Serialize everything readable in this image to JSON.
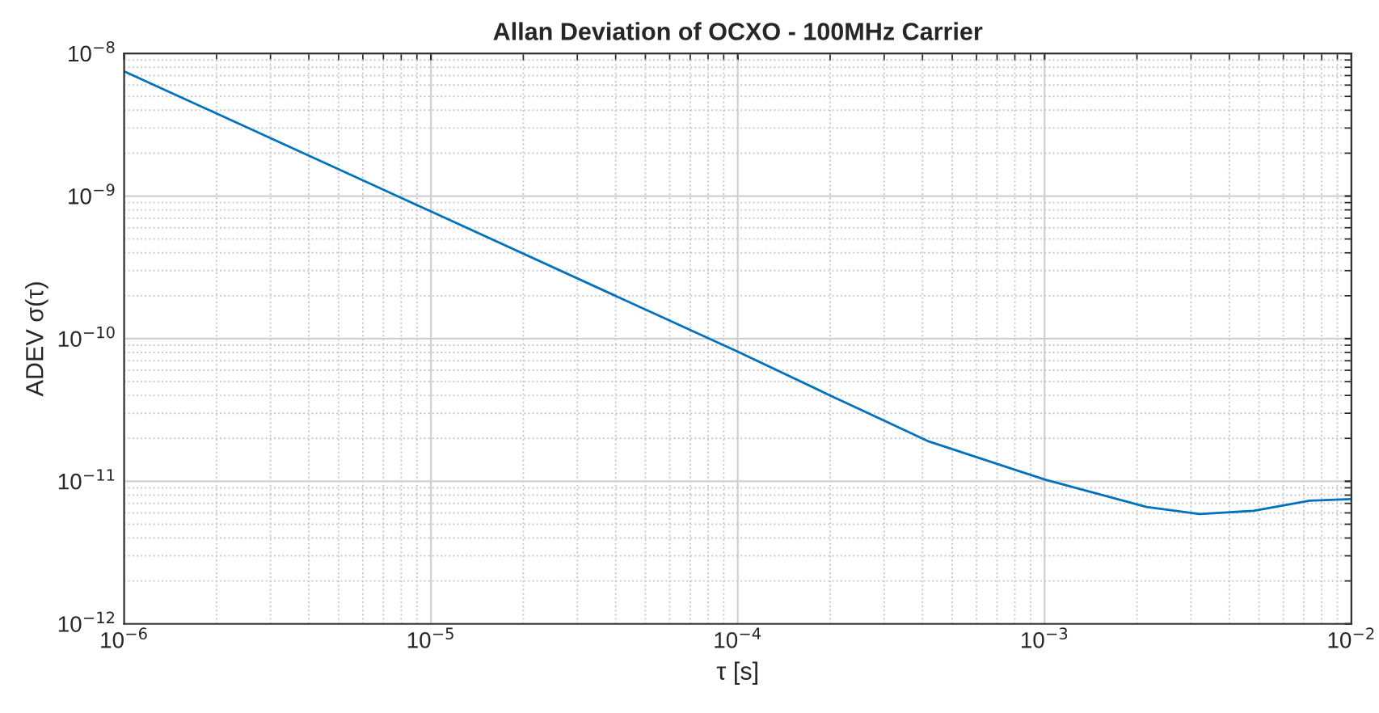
{
  "chart_data": {
    "type": "line",
    "title": "Allan Deviation of OCXO - 100MHz Carrier",
    "xlabel": "τ [s]",
    "ylabel": "ADEV σ(τ)",
    "log": "xy",
    "grid": true,
    "marker": "none",
    "line_style": "solid",
    "xlim": [
      1e-06,
      0.01
    ],
    "ylim": [
      1e-12,
      1e-08
    ],
    "xticks": [
      {
        "value": 1e-06,
        "label": "10$^{−6}$"
      },
      {
        "value": 1e-05,
        "label": "10$^{−5}$"
      },
      {
        "value": 0.0001,
        "label": "10$^{−4}$"
      },
      {
        "value": 0.001,
        "label": "10$^{−3}$"
      },
      {
        "value": 0.01,
        "label": "10$^{−2}$"
      }
    ],
    "yticks": [
      {
        "value": 1e-12,
        "label": "10$^{−12}$"
      },
      {
        "value": 1e-11,
        "label": "10$^{−11}$"
      },
      {
        "value": 1e-10,
        "label": "10$^{−10}$"
      },
      {
        "value": 1e-09,
        "label": "10$^{−9}$"
      },
      {
        "value": 1e-08,
        "label": "10$^{−8}$"
      }
    ],
    "series": [
      {
        "color": "#0072bd",
        "x": [
          1e-06,
          1e-05,
          0.0001,
          0.0002,
          0.00042,
          0.001,
          0.00215,
          0.0032,
          0.0048,
          0.0073,
          0.01
        ],
        "values": [
          7.5e-09,
          7.8e-10,
          8.1e-11,
          4e-11,
          1.9e-11,
          1.03e-11,
          6.6e-12,
          5.9e-12,
          6.2e-12,
          7.3e-12,
          7.5e-12
        ]
      }
    ]
  }
}
